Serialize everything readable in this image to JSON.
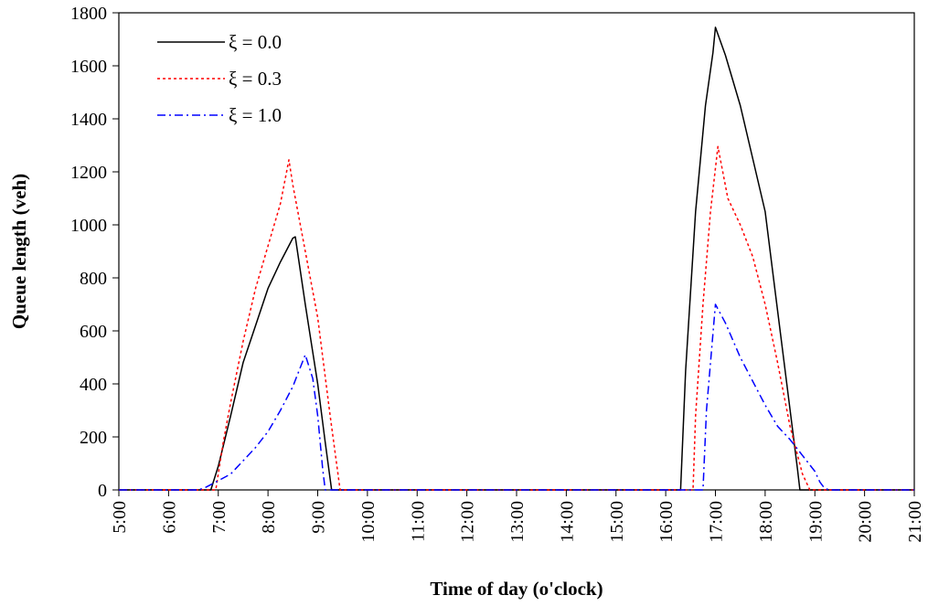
{
  "chart_data": {
    "type": "line",
    "xlabel": "Time of day (o'clock)",
    "ylabel": "Queue length (veh)",
    "xlim": [
      5,
      21
    ],
    "ylim": [
      0,
      1800
    ],
    "x_ticks": [
      "5:00",
      "6:00",
      "7:00",
      "8:00",
      "9:00",
      "10:00",
      "11:00",
      "12:00",
      "13:00",
      "14:00",
      "15:00",
      "16:00",
      "17:00",
      "18:00",
      "19:00",
      "20:00",
      "21:00"
    ],
    "y_ticks": [
      0,
      200,
      400,
      600,
      800,
      1000,
      1200,
      1400,
      1600,
      1800
    ],
    "grid": false,
    "legend_position": "top-left",
    "series": [
      {
        "name": "ξ = 0.0",
        "color": "#000000",
        "dash": "solid",
        "points": [
          [
            5,
            0
          ],
          [
            6.85,
            0
          ],
          [
            7.0,
            90
          ],
          [
            7.25,
            280
          ],
          [
            7.5,
            480
          ],
          [
            7.75,
            620
          ],
          [
            8.0,
            760
          ],
          [
            8.25,
            860
          ],
          [
            8.5,
            950
          ],
          [
            8.55,
            955
          ],
          [
            8.75,
            700
          ],
          [
            9.0,
            400
          ],
          [
            9.15,
            180
          ],
          [
            9.28,
            0
          ],
          [
            16.3,
            0
          ],
          [
            16.4,
            450
          ],
          [
            16.6,
            1050
          ],
          [
            16.8,
            1450
          ],
          [
            16.95,
            1650
          ],
          [
            17.0,
            1745
          ],
          [
            17.2,
            1640
          ],
          [
            17.5,
            1450
          ],
          [
            17.75,
            1250
          ],
          [
            18.0,
            1050
          ],
          [
            18.2,
            750
          ],
          [
            18.45,
            380
          ],
          [
            18.65,
            80
          ],
          [
            18.7,
            0
          ],
          [
            21,
            0
          ]
        ]
      },
      {
        "name": "ξ = 0.3",
        "color": "#ff0000",
        "dash": "dotted",
        "points": [
          [
            5,
            0
          ],
          [
            6.95,
            0
          ],
          [
            7.1,
            180
          ],
          [
            7.25,
            330
          ],
          [
            7.5,
            560
          ],
          [
            7.75,
            760
          ],
          [
            8.0,
            920
          ],
          [
            8.25,
            1080
          ],
          [
            8.42,
            1245
          ],
          [
            8.5,
            1150
          ],
          [
            8.7,
            950
          ],
          [
            9.0,
            650
          ],
          [
            9.25,
            280
          ],
          [
            9.45,
            0
          ],
          [
            16.55,
            0
          ],
          [
            16.6,
            280
          ],
          [
            16.75,
            700
          ],
          [
            16.9,
            1050
          ],
          [
            17.05,
            1295
          ],
          [
            17.25,
            1100
          ],
          [
            17.5,
            1000
          ],
          [
            17.75,
            880
          ],
          [
            18.0,
            700
          ],
          [
            18.25,
            480
          ],
          [
            18.5,
            240
          ],
          [
            18.75,
            60
          ],
          [
            18.9,
            0
          ],
          [
            21,
            0
          ]
        ]
      },
      {
        "name": "ξ = 1.0",
        "color": "#0000ff",
        "dash": "dashdot",
        "points": [
          [
            5,
            0
          ],
          [
            6.6,
            0
          ],
          [
            6.75,
            10
          ],
          [
            7.0,
            35
          ],
          [
            7.25,
            60
          ],
          [
            7.5,
            110
          ],
          [
            7.75,
            160
          ],
          [
            8.0,
            220
          ],
          [
            8.25,
            300
          ],
          [
            8.5,
            390
          ],
          [
            8.75,
            510
          ],
          [
            8.9,
            420
          ],
          [
            9.0,
            280
          ],
          [
            9.1,
            80
          ],
          [
            9.15,
            0
          ],
          [
            16.75,
            0
          ],
          [
            16.82,
            300
          ],
          [
            16.95,
            590
          ],
          [
            17.0,
            700
          ],
          [
            17.2,
            630
          ],
          [
            17.5,
            500
          ],
          [
            17.75,
            410
          ],
          [
            18.0,
            320
          ],
          [
            18.25,
            240
          ],
          [
            18.5,
            190
          ],
          [
            18.75,
            130
          ],
          [
            19.0,
            70
          ],
          [
            19.1,
            30
          ],
          [
            19.2,
            5
          ],
          [
            19.3,
            0
          ],
          [
            21,
            0
          ]
        ]
      }
    ]
  }
}
